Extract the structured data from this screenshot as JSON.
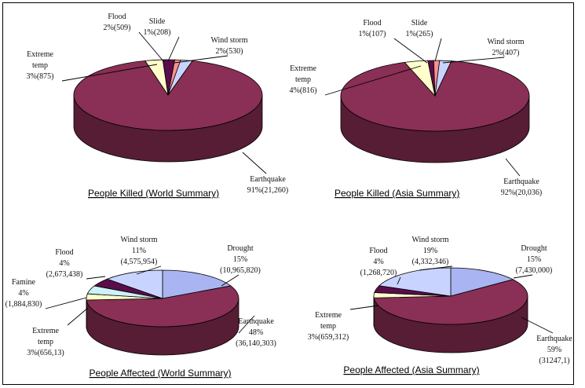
{
  "chart_data": [
    {
      "type": "pie",
      "title": "People Killed (World Summary)",
      "slices": [
        {
          "label": "Earthquake",
          "value_text": "91%(21,260)",
          "pct": 91
        },
        {
          "label": "Extreme temp",
          "value_text": "3%(875)",
          "pct": 3
        },
        {
          "label": "Flood",
          "value_text": "2%(509)",
          "pct": 2
        },
        {
          "label": "Slide",
          "value_text": "1%(208)",
          "pct": 1
        },
        {
          "label": "Wind storm",
          "value_text": "2%(530)",
          "pct": 2
        }
      ]
    },
    {
      "type": "pie",
      "title": "People Killed (Asia Summary)",
      "slices": [
        {
          "label": "Earthquake",
          "value_text": "92%(20,036)",
          "pct": 92
        },
        {
          "label": "Extreme temp",
          "value_text": "4%(816)",
          "pct": 4
        },
        {
          "label": "Flood",
          "value_text": "1%(107)",
          "pct": 1
        },
        {
          "label": "Slide",
          "value_text": "1%(265)",
          "pct": 1
        },
        {
          "label": "Wind storm",
          "value_text": "2%(407)",
          "pct": 2
        }
      ]
    },
    {
      "type": "pie",
      "title": "People Affected (World Summary)",
      "slices": [
        {
          "label": "Drought",
          "value_text": "15%",
          "sub_text": "(10,965,820)",
          "pct": 15
        },
        {
          "label": "Earthquake",
          "value_text": "48%",
          "sub_text": "(36,140,303)",
          "pct": 48
        },
        {
          "label": "Extreme temp",
          "value_text": "3%(656,13)",
          "pct": 3
        },
        {
          "label": "Famine",
          "value_text": "4%",
          "sub_text": "(1,884,830)",
          "pct": 4
        },
        {
          "label": "Flood",
          "value_text": "4%",
          "sub_text": "(2,673,438)",
          "pct": 4
        },
        {
          "label": "Wind storm",
          "value_text": "11%",
          "sub_text": "(4,575,954)",
          "pct": 11
        }
      ]
    },
    {
      "type": "pie",
      "title": "People Affected (Asia Summary)",
      "slices": [
        {
          "label": "Drought",
          "value_text": "15%",
          "sub_text": "(7,430,000)",
          "pct": 15
        },
        {
          "label": "Earthquake",
          "value_text": "59%",
          "sub_text": "(31247,1)",
          "pct": 59
        },
        {
          "label": "Extreme temp",
          "value_text": "3%(659,312)",
          "pct": 3
        },
        {
          "label": "Flood",
          "value_text": "4%",
          "sub_text": "(1,268,720)",
          "pct": 4
        },
        {
          "label": "Wind storm",
          "value_text": "19%",
          "sub_text": "(4,332,346)",
          "pct": 19
        }
      ]
    }
  ],
  "colors": {
    "Earthquake": "#8a2f55",
    "Extreme temp": "#ffffcc",
    "Flood": "#5a0d4a",
    "Slide": "#ff8f8f",
    "Wind storm": "#c8d4ff",
    "Drought": "#a9b4f2",
    "Famine": "#ccf2f8"
  }
}
